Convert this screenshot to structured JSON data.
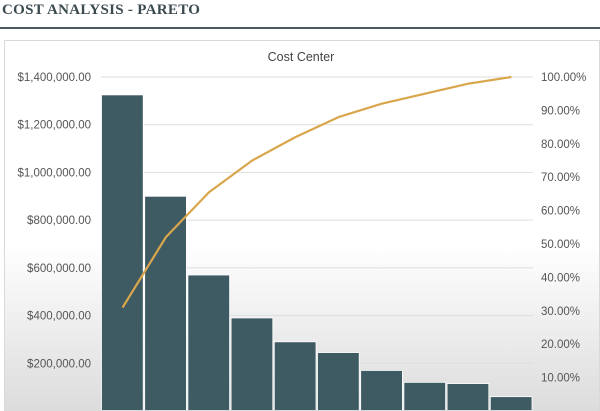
{
  "header": {
    "title": "COST ANALYSIS - PARETO"
  },
  "chart_data": {
    "type": "bar",
    "title": "Cost Center",
    "xlabel": "",
    "ylabel": "",
    "ylim": [
      0,
      1400000
    ],
    "y2lim": [
      0,
      1
    ],
    "left_ticks": [
      "$1,400,000.00",
      "$1,200,000.00",
      "$1,000,000.00",
      "$800,000.00",
      "$600,000.00",
      "$400,000.00",
      "$200,000.00"
    ],
    "right_ticks": [
      "100.00%",
      "90.00%",
      "80.00%",
      "70.00%",
      "60.00%",
      "50.00%",
      "40.00%",
      "30.00%",
      "20.00%",
      "10.00%"
    ],
    "grid": true,
    "legend": "none",
    "series": [
      {
        "type": "bar",
        "color": "#3e5a62",
        "values": [
          1325000,
          900000,
          570000,
          390000,
          290000,
          245000,
          170000,
          120000,
          115000,
          60000
        ]
      },
      {
        "type": "line",
        "axis": "secondary",
        "color": "#d9a64c",
        "values": [
          0.31,
          0.52,
          0.655,
          0.75,
          0.82,
          0.88,
          0.92,
          0.95,
          0.98,
          1.0
        ]
      }
    ]
  }
}
